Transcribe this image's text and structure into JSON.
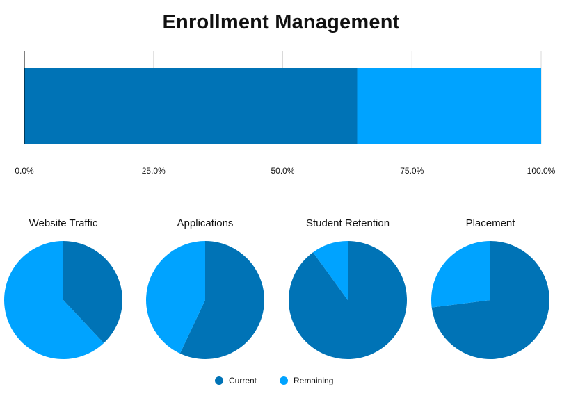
{
  "title": "Enrollment Management",
  "colors": {
    "current": "#0073b6",
    "remaining": "#00a3ff",
    "grid": "#d9d9d9",
    "axis": "#000000"
  },
  "chart_data": [
    {
      "type": "bar",
      "orientation": "horizontal",
      "stacked": true,
      "percent_axis": true,
      "xlim": [
        0,
        100
      ],
      "x_ticks": [
        "0.0%",
        "25.0%",
        "50.0%",
        "75.0%",
        "100.0%"
      ],
      "grid": true,
      "series": [
        {
          "name": "Current",
          "values": [
            64.4
          ]
        },
        {
          "name": "Remaining",
          "values": [
            35.6
          ]
        }
      ]
    },
    {
      "type": "pie",
      "title": "Website Traffic",
      "slices": [
        {
          "name": "Current",
          "value": 38
        },
        {
          "name": "Remaining",
          "value": 62
        }
      ]
    },
    {
      "type": "pie",
      "title": "Applications",
      "slices": [
        {
          "name": "Current",
          "value": 57
        },
        {
          "name": "Remaining",
          "value": 43
        }
      ]
    },
    {
      "type": "pie",
      "title": "Student Retention",
      "slices": [
        {
          "name": "Current",
          "value": 90
        },
        {
          "name": "Remaining",
          "value": 10
        }
      ]
    },
    {
      "type": "pie",
      "title": "Placement",
      "slices": [
        {
          "name": "Current",
          "value": 73
        },
        {
          "name": "Remaining",
          "value": 27
        }
      ]
    }
  ],
  "legend": {
    "placement": "bottom-center",
    "items": [
      {
        "label": "Current"
      },
      {
        "label": "Remaining"
      }
    ]
  }
}
